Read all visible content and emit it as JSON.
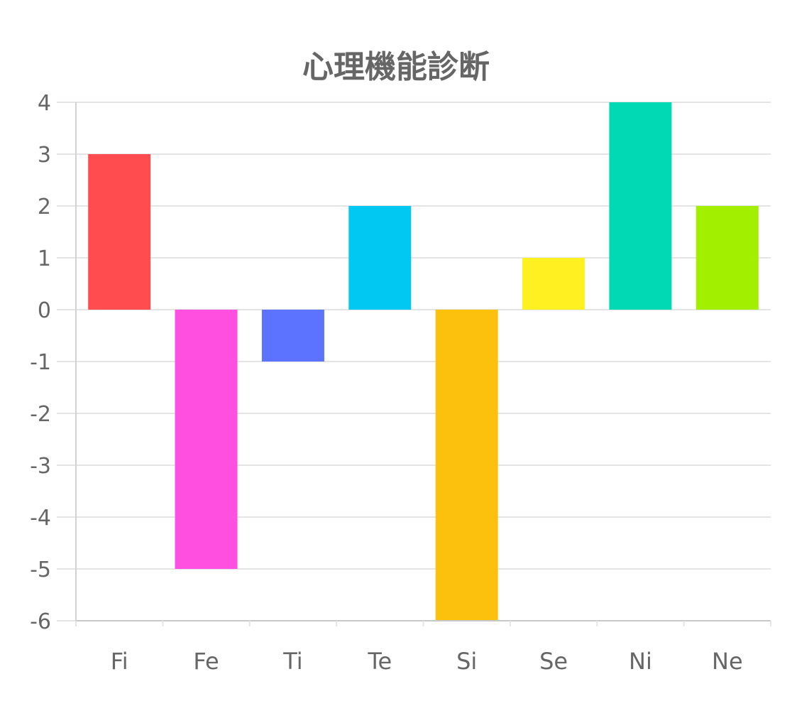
{
  "chart_data": {
    "type": "bar",
    "title": "心理機能診断",
    "xlabel": "",
    "ylabel": "",
    "categories": [
      "Fi",
      "Fe",
      "Ti",
      "Te",
      "Si",
      "Se",
      "Ni",
      "Ne"
    ],
    "values": [
      3,
      -5,
      -1,
      2,
      -6,
      1,
      4,
      2
    ],
    "colors": [
      "#ff4d4f",
      "#ff4fe0",
      "#5b73ff",
      "#00c8f2",
      "#fcc10d",
      "#fff021",
      "#00d9b3",
      "#a2f000"
    ],
    "ylim": [
      -6,
      4
    ],
    "yticks": [
      "4",
      "3",
      "2",
      "1",
      "0",
      "-1",
      "-2",
      "-3",
      "-4",
      "-5",
      "-6"
    ],
    "grid": true,
    "legend": "none"
  }
}
